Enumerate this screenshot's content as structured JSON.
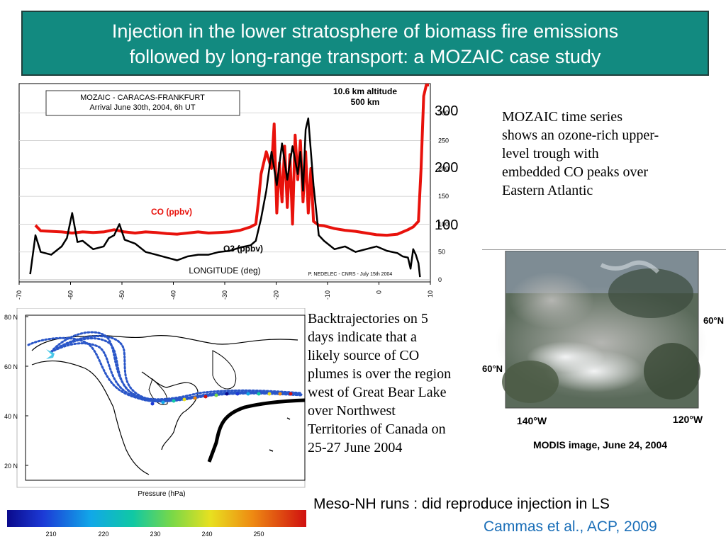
{
  "slide": {
    "title_line1": "Injection in the lower stratosphere of biomass fire emissions",
    "title_line2": "followed by long-range transport: a MOZAIC case study",
    "mozaic_text": [
      "MOZAIC time series",
      "shows an ozone-rich upper-",
      "level trough with",
      "embedded CO peaks over",
      "Eastern Atlantic"
    ],
    "backtraj_text": [
      "Backtrajectories on 5",
      "days indicate that a",
      "likely source of CO",
      "plumes is over the region",
      "west of Great Bear Lake",
      "over Northwest",
      "Territories of Canada on",
      "25-27 June 2004"
    ],
    "modis_caption": "MODIS image, June 24, 2004",
    "meso_text": "Meso-NH runs : did reproduce injection in LS",
    "citation": "Cammas et al., ACP, 2009"
  },
  "chart": {
    "legend_line1": "MOZAIC - CARACAS-FRANKFURT",
    "legend_line2": "Arrival June 30th, 2004, 6h UT",
    "altitude_line1": "10.6 km altitude",
    "altitude_line2": "500 km",
    "co_label": "CO (ppbv)",
    "o3_label": "O3 (ppbv)",
    "xlabel": "LONGITUDE (deg)",
    "credit": "P. NEDELEC - CNRS - July 15th 2004",
    "x_ticks": [
      "-70",
      "-60",
      "-50",
      "-40",
      "-30",
      "-20",
      "-10",
      "0",
      "10"
    ],
    "y_small_ticks": [
      "300",
      "250",
      "200",
      "150",
      "100",
      "50",
      "0"
    ],
    "y_big_ticks": [
      "300",
      "200",
      "100"
    ]
  },
  "chart_data": {
    "type": "line",
    "xlabel": "LONGITUDE (deg)",
    "xlim": [
      -70,
      10
    ],
    "ylim": [
      0,
      350
    ],
    "series": [
      {
        "name": "CO (ppbv)",
        "color": "#e8120c",
        "x": [
          -67,
          -66,
          -64,
          -62,
          -60,
          -58,
          -56,
          -54,
          -52,
          -50,
          -48,
          -46,
          -44,
          -42,
          -40,
          -38,
          -36,
          -34,
          -32,
          -30,
          -28,
          -26,
          -25,
          -24.5,
          -24,
          -23,
          -22,
          -21.5,
          -21,
          -20.5,
          -20,
          -19.5,
          -19,
          -18.5,
          -18,
          -17.5,
          -17,
          -16.5,
          -16,
          -15.5,
          -15,
          -14.5,
          -14,
          -13,
          -12,
          -10,
          -8,
          -6,
          -4,
          -2,
          0,
          2,
          4,
          5,
          6,
          6.5,
          7,
          7.5,
          8
        ],
        "y": [
          98,
          88,
          87,
          86,
          84,
          86,
          85,
          86,
          90,
          86,
          84,
          86,
          85,
          83,
          82,
          84,
          86,
          84,
          85,
          86,
          89,
          95,
          100,
          140,
          190,
          230,
          200,
          280,
          120,
          210,
          140,
          240,
          130,
          225,
          100,
          260,
          180,
          250,
          140,
          230,
          120,
          200,
          105,
          98,
          97,
          92,
          89,
          87,
          84,
          81,
          80,
          82,
          90,
          95,
          105,
          200,
          330,
          350,
          350
        ]
      },
      {
        "name": "O3 (ppbv)",
        "color": "#000000",
        "x": [
          -68,
          -67,
          -66,
          -64,
          -62,
          -61,
          -60,
          -59,
          -58,
          -56,
          -54,
          -53,
          -52,
          -51,
          -50,
          -48,
          -46,
          -44,
          -42,
          -40,
          -38,
          -36,
          -34,
          -32,
          -30,
          -28,
          -26,
          -25,
          -24,
          -23,
          -22,
          -21,
          -20,
          -19,
          -18,
          -17,
          -16.5,
          -16,
          -15.5,
          -15,
          -14,
          -13,
          -12,
          -10,
          -8,
          -6,
          -4,
          -2,
          0,
          2,
          3,
          4,
          4.5,
          5,
          5.5,
          6,
          6.3
        ],
        "y": [
          10,
          80,
          50,
          45,
          60,
          75,
          120,
          68,
          70,
          55,
          60,
          75,
          80,
          100,
          72,
          65,
          50,
          45,
          40,
          35,
          42,
          45,
          45,
          50,
          52,
          58,
          62,
          70,
          110,
          160,
          230,
          170,
          245,
          180,
          240,
          190,
          230,
          160,
          270,
          290,
          170,
          80,
          70,
          55,
          60,
          50,
          55,
          60,
          52,
          48,
          42,
          40,
          20,
          55,
          45,
          30,
          5
        ]
      }
    ]
  },
  "map": {
    "lat_labels": [
      "80 N",
      "60 N",
      "40 N",
      "20 N"
    ],
    "lat_values": [
      80,
      60,
      40,
      20
    ],
    "pressure_label": "Pressure (hPa)",
    "pressure_ticks": [
      "210",
      "220",
      "230",
      "240",
      "250"
    ]
  },
  "satellite": {
    "label_60n_right": "60°N",
    "label_60n_left": "60°N",
    "label_140w": "140°W",
    "label_120w": "120°W"
  }
}
